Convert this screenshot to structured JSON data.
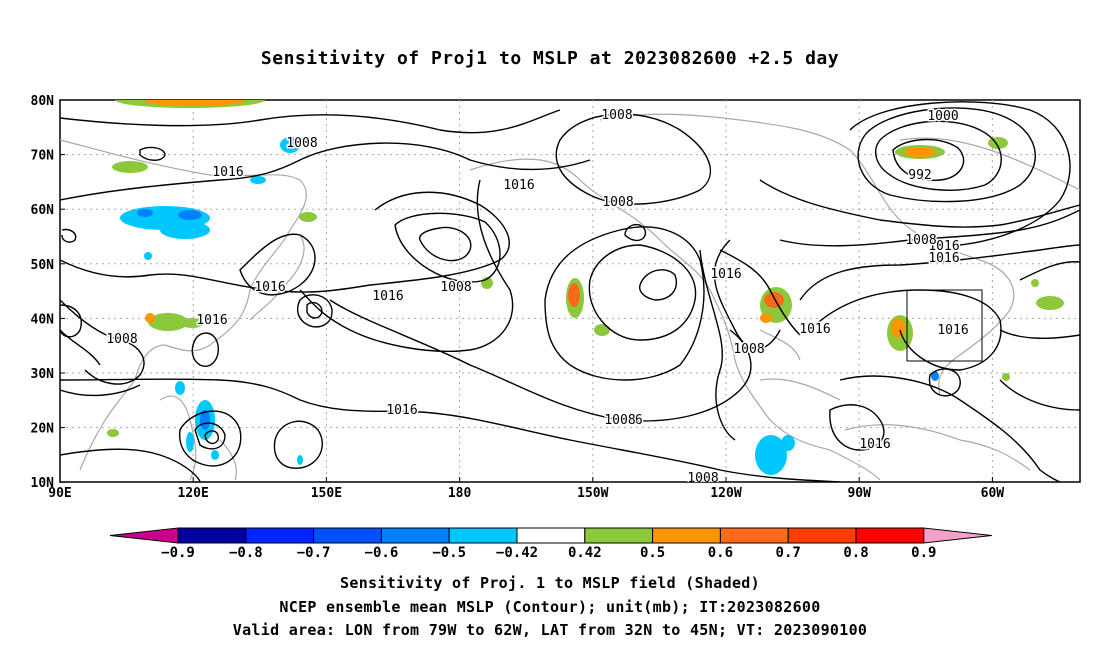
{
  "title": "Sensitivity of Proj1 to MSLP at 2023082600 +2.5 day",
  "lat_labels": [
    "80N",
    "70N",
    "60N",
    "50N",
    "40N",
    "30N",
    "20N",
    "10N"
  ],
  "lon_labels": [
    "90E",
    "120E",
    "150E",
    "180",
    "150W",
    "120W",
    "90W",
    "60W"
  ],
  "contour_labels": [
    "1008",
    "1016",
    "1016",
    "1008",
    "1008",
    "1016",
    "1016",
    "1008",
    "1016",
    "1008",
    "1016",
    "1016",
    "1016",
    "1008",
    "1016",
    "1008",
    "1016",
    "1000",
    "992",
    "1008",
    "1016",
    "1016",
    "1008",
    "1016"
  ],
  "colorbar": {
    "labels": [
      "−0.9",
      "−0.8",
      "−0.7",
      "−0.6",
      "−0.5",
      "−0.42",
      "0.42",
      "0.5",
      "0.6",
      "0.7",
      "0.8",
      "0.9"
    ],
    "left_triangle_color": "#c8008c",
    "right_triangle_color": "#f5a0c8",
    "bins": [
      "#0000a0",
      "#0024ff",
      "#0050ff",
      "#0080ff",
      "#00c8ff",
      "#ffffff",
      "#8cc83c",
      "#ff9600",
      "#ff6a1a",
      "#ff3c00",
      "#ff0000"
    ]
  },
  "captions": {
    "line1": "Sensitivity of Proj. 1 to MSLP field (Shaded)",
    "line2": "NCEP ensemble mean MSLP (Contour); unit(mb); IT:2023082600",
    "line3": "Valid area: LON from 79W to 62W, LAT from 32N to 45N; VT: 2023090100"
  }
}
